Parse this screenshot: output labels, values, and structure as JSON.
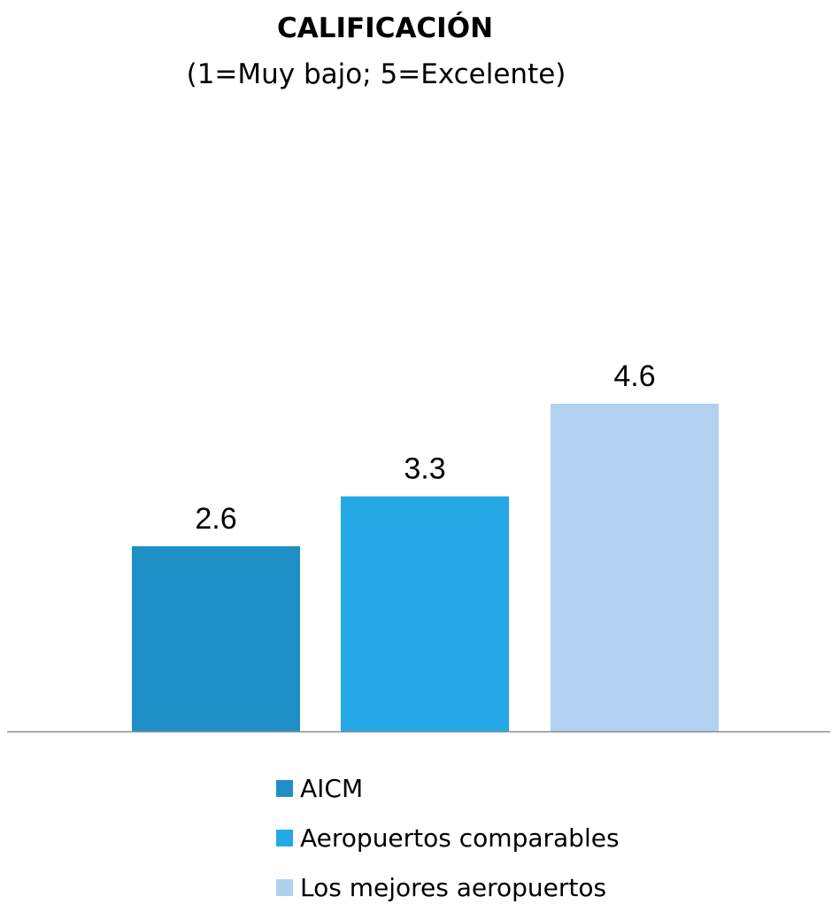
{
  "chart_data": {
    "type": "bar",
    "title": "CALIFICACIÓN",
    "subtitle": "(1=Muy bajo; 5=Excelente)",
    "xlabel": "",
    "ylabel": "",
    "ylim": [
      0,
      5
    ],
    "grid": false,
    "legend_position": "bottom",
    "series": [
      {
        "name": "AICM",
        "value": 2.6,
        "label": "2.6",
        "color": "#1f8fc7"
      },
      {
        "name": "Aeropuertos comparables",
        "value": 3.3,
        "label": "3.3",
        "color": "#25a8e6"
      },
      {
        "name": "Los mejores aeropuertos",
        "value": 4.6,
        "label": "4.6",
        "color": "#b2d0f0"
      }
    ],
    "axis_color": "#8c8c8c"
  }
}
